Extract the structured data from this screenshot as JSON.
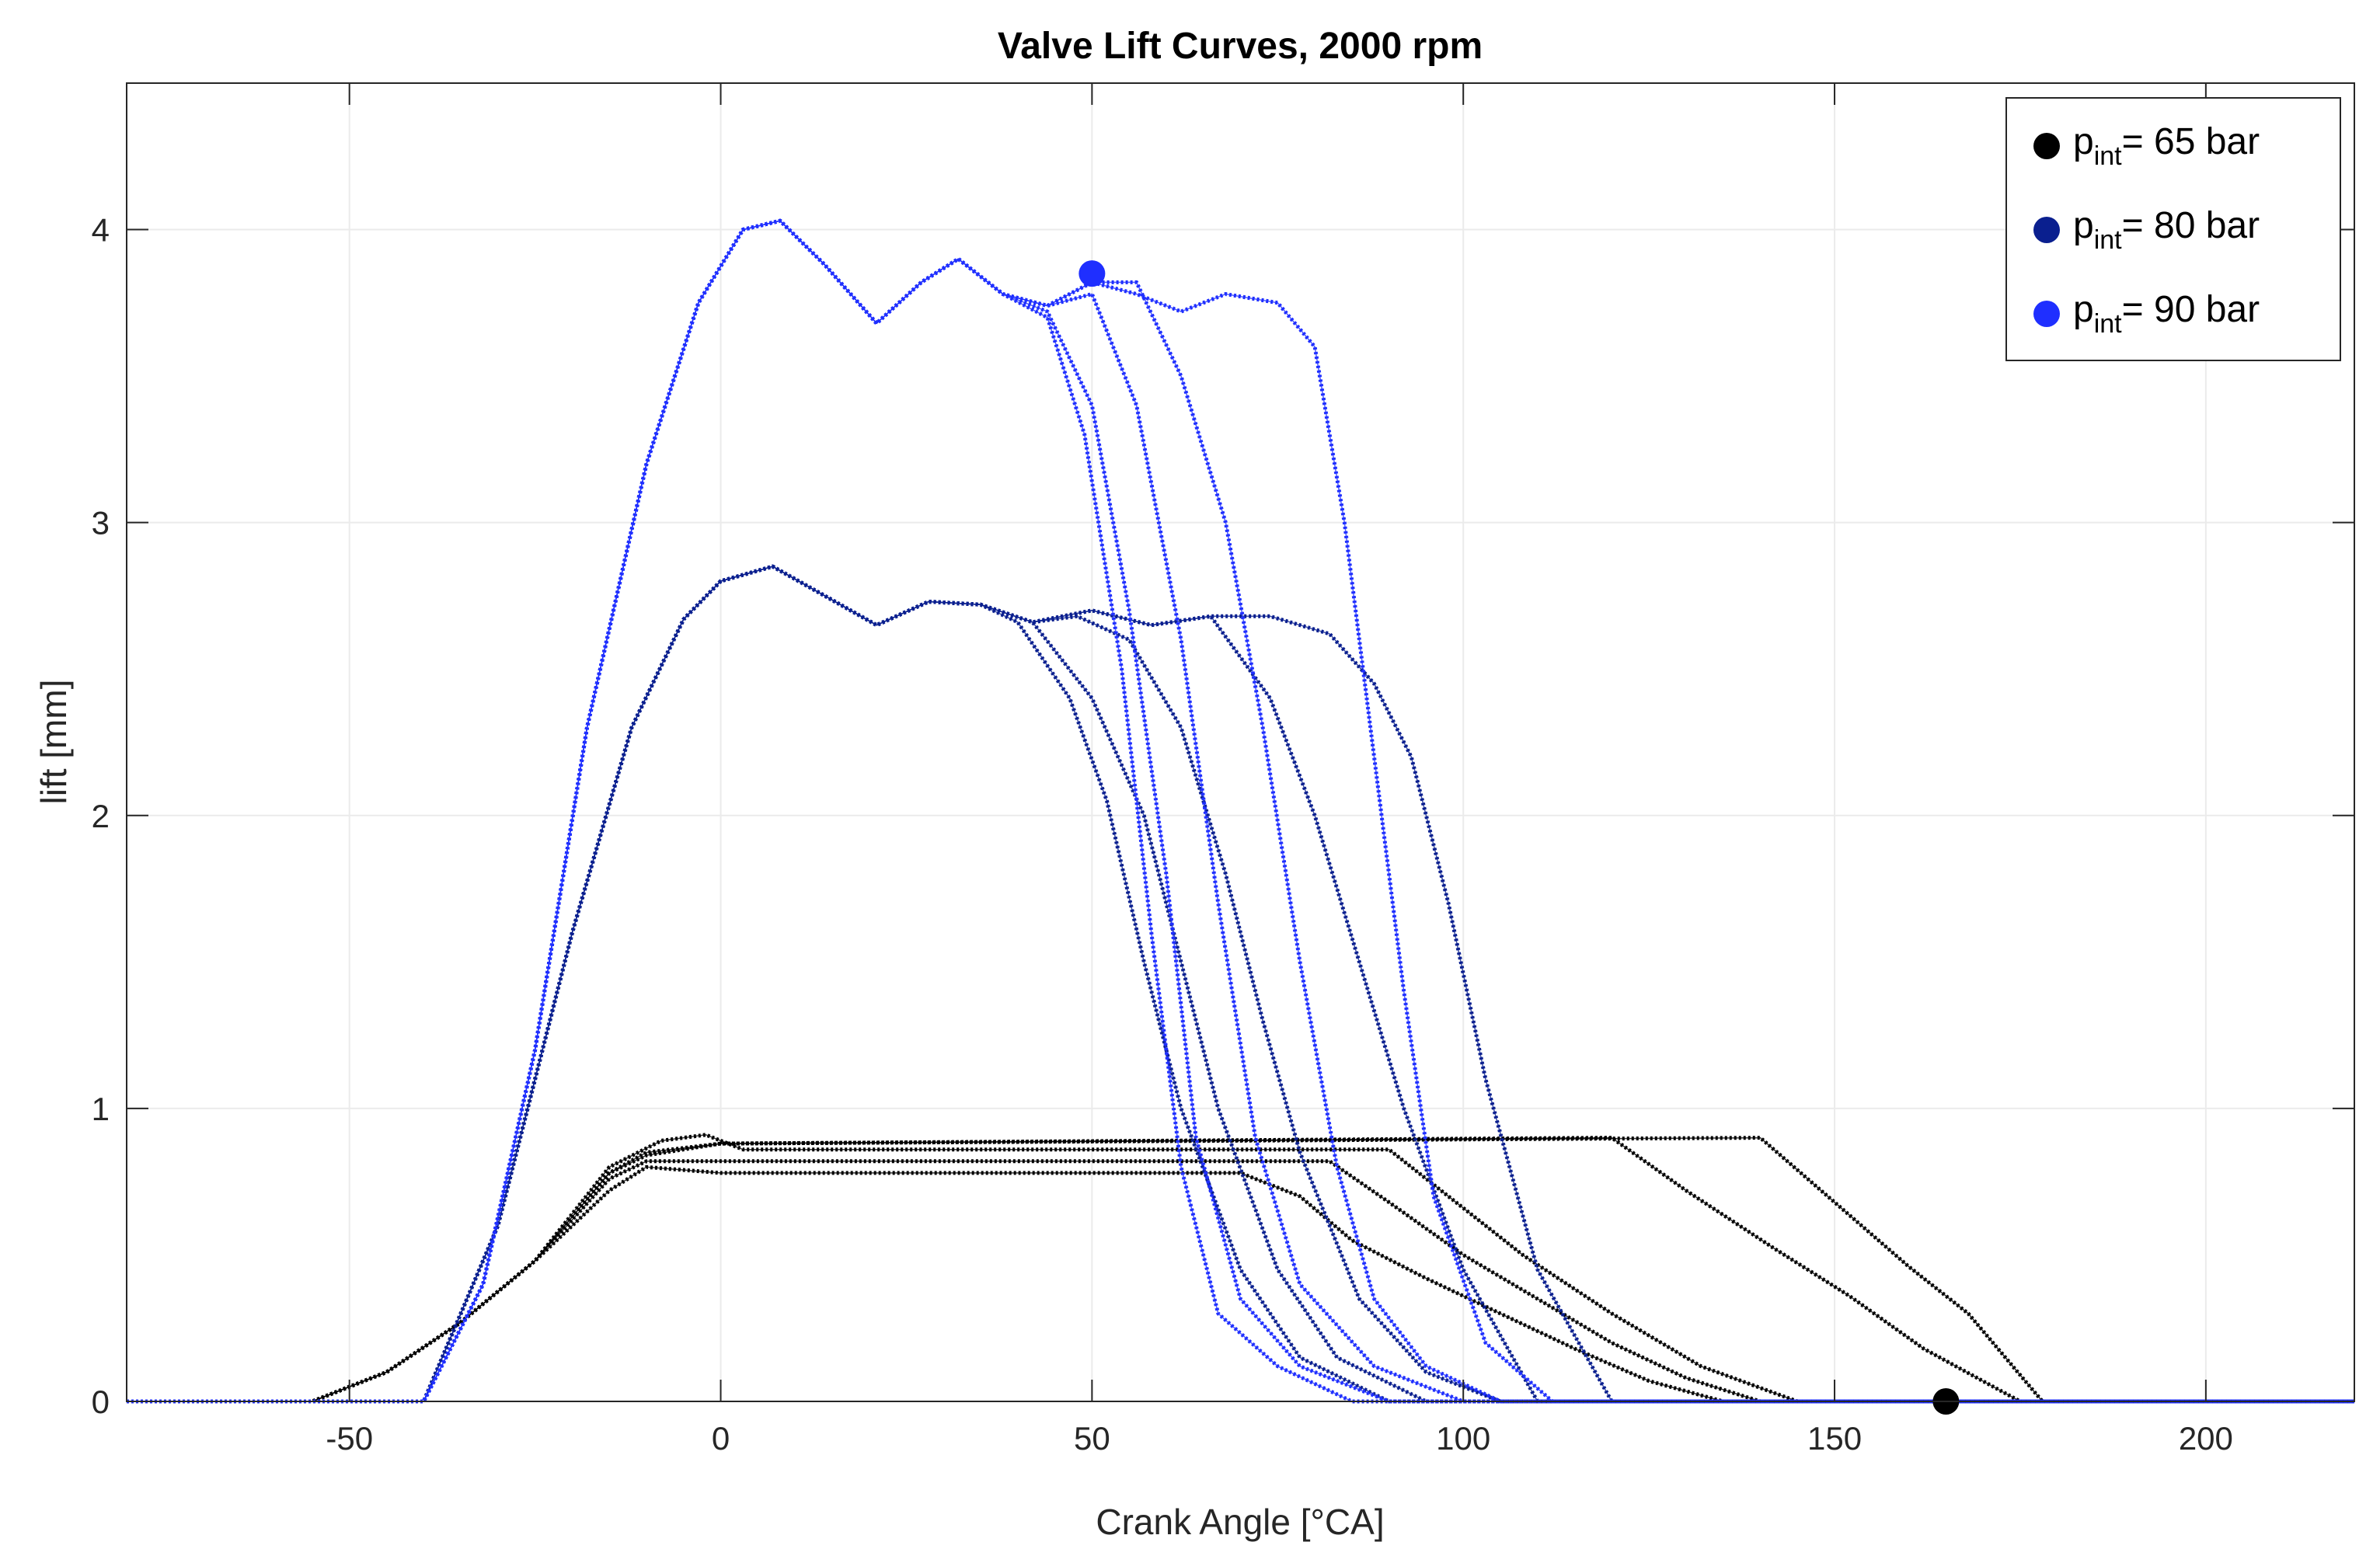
{
  "chart_data": {
    "type": "line",
    "title": "Valve Lift Curves, 2000 rpm",
    "xlabel": "Crank Angle [°CA]",
    "ylabel": "lift [mm]",
    "xlim": [
      -80,
      220
    ],
    "ylim": [
      0,
      4.5
    ],
    "xticks": [
      -50,
      0,
      50,
      100,
      150,
      200
    ],
    "yticks": [
      0,
      1,
      2,
      3,
      4
    ],
    "xtick_labels": [
      "-50",
      "0",
      "50",
      "100",
      "150",
      "200"
    ],
    "ytick_labels": [
      "0",
      "1",
      "2",
      "3",
      "4"
    ],
    "grid": true,
    "legend_position": "top-right",
    "series": [
      {
        "name": "p_int= 65 bar",
        "label_main": "p",
        "label_sub": "int",
        "label_rest": "= 65 bar",
        "color": "#000000",
        "curves": [
          {
            "x": [
              -80,
              -55,
              -45,
              -35,
              -25,
              -15,
              -10,
              0,
              70,
              78,
              85,
              95,
              105,
              115,
              125,
              135,
              220
            ],
            "y": [
              0,
              0,
              0.1,
              0.27,
              0.48,
              0.72,
              0.8,
              0.78,
              0.78,
              0.7,
              0.55,
              0.42,
              0.3,
              0.18,
              0.07,
              0,
              0
            ]
          },
          {
            "x": [
              -80,
              -55,
              -45,
              -35,
              -25,
              -15,
              -10,
              0,
              82,
              90,
              100,
              110,
              120,
              130,
              140,
              220
            ],
            "y": [
              0,
              0,
              0.1,
              0.27,
              0.48,
              0.76,
              0.82,
              0.82,
              0.82,
              0.68,
              0.5,
              0.35,
              0.2,
              0.08,
              0,
              0
            ]
          },
          {
            "x": [
              -80,
              -55,
              -45,
              -35,
              -25,
              -15,
              -8,
              -2,
              3,
              10,
              90,
              98,
              108,
              120,
              132,
              145,
              220
            ],
            "y": [
              0,
              0,
              0.1,
              0.27,
              0.48,
              0.8,
              0.89,
              0.91,
              0.86,
              0.86,
              0.86,
              0.7,
              0.5,
              0.3,
              0.12,
              0,
              0
            ]
          },
          {
            "x": [
              -80,
              -55,
              -45,
              -35,
              -25,
              -15,
              -10,
              0,
              120,
              130,
              142,
              152,
              162,
              175,
              220
            ],
            "y": [
              0,
              0,
              0.1,
              0.27,
              0.48,
              0.78,
              0.84,
              0.88,
              0.9,
              0.72,
              0.52,
              0.36,
              0.18,
              0,
              0
            ]
          },
          {
            "x": [
              -80,
              -55,
              -45,
              -35,
              -25,
              -15,
              -10,
              0,
              140,
              150,
              160,
              168,
              178,
              220
            ],
            "y": [
              0,
              0,
              0.1,
              0.27,
              0.48,
              0.78,
              0.85,
              0.88,
              0.9,
              0.68,
              0.46,
              0.3,
              0,
              0
            ]
          }
        ]
      },
      {
        "name": "p_int= 80 bar",
        "label_main": "p",
        "label_sub": "int",
        "label_rest": "= 80 bar",
        "color": "#0a1f8f",
        "curves": [
          {
            "x": [
              -80,
              -40,
              -30,
              -20,
              -12,
              -5,
              0,
              7,
              14,
              21,
              28,
              35,
              40,
              47,
              52,
              57,
              62,
              70,
              78,
              90,
              220
            ],
            "y": [
              0,
              0,
              0.6,
              1.6,
              2.3,
              2.67,
              2.8,
              2.85,
              2.75,
              2.65,
              2.73,
              2.72,
              2.66,
              2.4,
              2.05,
              1.5,
              1.0,
              0.45,
              0.15,
              0,
              0
            ]
          },
          {
            "x": [
              -80,
              -40,
              -30,
              -20,
              -12,
              -5,
              0,
              7,
              14,
              21,
              28,
              35,
              42,
              50,
              57,
              62,
              67,
              75,
              83,
              95,
              220
            ],
            "y": [
              0,
              0,
              0.6,
              1.6,
              2.3,
              2.67,
              2.8,
              2.85,
              2.75,
              2.65,
              2.73,
              2.72,
              2.66,
              2.4,
              2.0,
              1.5,
              1.0,
              0.45,
              0.15,
              0,
              0
            ]
          },
          {
            "x": [
              -80,
              -40,
              -30,
              -20,
              -12,
              -5,
              0,
              7,
              14,
              21,
              28,
              35,
              42,
              48,
              55,
              62,
              68,
              73,
              78,
              86,
              95,
              105,
              220
            ],
            "y": [
              0,
              0,
              0.6,
              1.6,
              2.3,
              2.67,
              2.8,
              2.85,
              2.75,
              2.65,
              2.73,
              2.72,
              2.66,
              2.68,
              2.6,
              2.3,
              1.8,
              1.3,
              0.85,
              0.35,
              0.1,
              0,
              0
            ]
          },
          {
            "x": [
              -80,
              -40,
              -30,
              -20,
              -12,
              -5,
              0,
              7,
              14,
              21,
              28,
              35,
              42,
              50,
              58,
              66,
              74,
              80,
              86,
              92,
              100,
              110,
              220
            ],
            "y": [
              0,
              0,
              0.6,
              1.6,
              2.3,
              2.67,
              2.8,
              2.85,
              2.75,
              2.65,
              2.73,
              2.72,
              2.66,
              2.7,
              2.65,
              2.68,
              2.4,
              2.0,
              1.5,
              1.0,
              0.45,
              0,
              0
            ]
          },
          {
            "x": [
              -80,
              -40,
              -30,
              -20,
              -12,
              -5,
              0,
              7,
              14,
              21,
              28,
              35,
              42,
              50,
              58,
              66,
              74,
              82,
              88,
              93,
              98,
              103,
              110,
              120,
              220
            ],
            "y": [
              0,
              0,
              0.6,
              1.6,
              2.3,
              2.67,
              2.8,
              2.85,
              2.75,
              2.65,
              2.73,
              2.72,
              2.66,
              2.7,
              2.65,
              2.68,
              2.68,
              2.62,
              2.45,
              2.2,
              1.7,
              1.1,
              0.45,
              0,
              0
            ]
          }
        ]
      },
      {
        "name": "p_int= 90 bar",
        "label_main": "p",
        "label_sub": "int",
        "label_rest": "= 90 bar",
        "color": "#1f2fff",
        "curves": [
          {
            "x": [
              -80,
              -40,
              -32,
              -25,
              -18,
              -10,
              -3,
              3,
              8,
              14,
              21,
              27,
              32,
              38,
              44,
              49,
              54,
              58,
              62,
              67,
              75,
              85,
              220
            ],
            "y": [
              0,
              0,
              0.4,
              1.2,
              2.3,
              3.2,
              3.75,
              4.0,
              4.03,
              3.88,
              3.68,
              3.82,
              3.9,
              3.78,
              3.7,
              3.3,
              2.5,
              1.6,
              0.8,
              0.3,
              0.12,
              0,
              0
            ]
          },
          {
            "x": [
              -80,
              -40,
              -32,
              -25,
              -18,
              -10,
              -3,
              3,
              8,
              14,
              21,
              27,
              32,
              38,
              44,
              50,
              55,
              60,
              64,
              70,
              78,
              90,
              220
            ],
            "y": [
              0,
              0,
              0.4,
              1.2,
              2.3,
              3.2,
              3.75,
              4.0,
              4.03,
              3.88,
              3.68,
              3.82,
              3.9,
              3.78,
              3.72,
              3.4,
              2.7,
              1.8,
              0.9,
              0.35,
              0.12,
              0,
              0
            ]
          },
          {
            "x": [
              -80,
              -40,
              -32,
              -25,
              -18,
              -10,
              -3,
              3,
              8,
              14,
              21,
              27,
              32,
              38,
              44,
              50,
              56,
              62,
              67,
              72,
              78,
              88,
              100,
              220
            ],
            "y": [
              0,
              0,
              0.4,
              1.2,
              2.3,
              3.2,
              3.75,
              4.0,
              4.03,
              3.88,
              3.68,
              3.82,
              3.9,
              3.78,
              3.74,
              3.78,
              3.4,
              2.6,
              1.7,
              0.9,
              0.4,
              0.12,
              0,
              0
            ]
          },
          {
            "x": [
              -80,
              -40,
              -32,
              -25,
              -18,
              -10,
              -3,
              3,
              8,
              14,
              21,
              27,
              32,
              38,
              44,
              50,
              56,
              62,
              68,
              73,
              78,
              83,
              88,
              95,
              105,
              220
            ],
            "y": [
              0,
              0,
              0.4,
              1.2,
              2.3,
              3.2,
              3.75,
              4.0,
              4.03,
              3.88,
              3.68,
              3.82,
              3.9,
              3.78,
              3.74,
              3.82,
              3.82,
              3.5,
              3.0,
              2.3,
              1.5,
              0.8,
              0.35,
              0.12,
              0,
              0
            ]
          },
          {
            "x": [
              -80,
              -40,
              -32,
              -25,
              -18,
              -10,
              -3,
              3,
              8,
              14,
              21,
              27,
              32,
              38,
              44,
              50,
              56,
              62,
              68,
              75,
              80,
              84,
              88,
              92,
              96,
              103,
              112,
              220
            ],
            "y": [
              0,
              0,
              0.4,
              1.2,
              2.3,
              3.2,
              3.75,
              4.0,
              4.03,
              3.88,
              3.68,
              3.82,
              3.9,
              3.78,
              3.74,
              3.82,
              3.78,
              3.72,
              3.78,
              3.75,
              3.6,
              3.0,
              2.2,
              1.4,
              0.7,
              0.2,
              0,
              0
            ]
          }
        ]
      }
    ],
    "markers": [
      {
        "x": 165,
        "y": 0,
        "series": "p_int= 65 bar"
      },
      {
        "x": 50,
        "y": 3.85,
        "series": "p_int= 90 bar"
      }
    ]
  }
}
